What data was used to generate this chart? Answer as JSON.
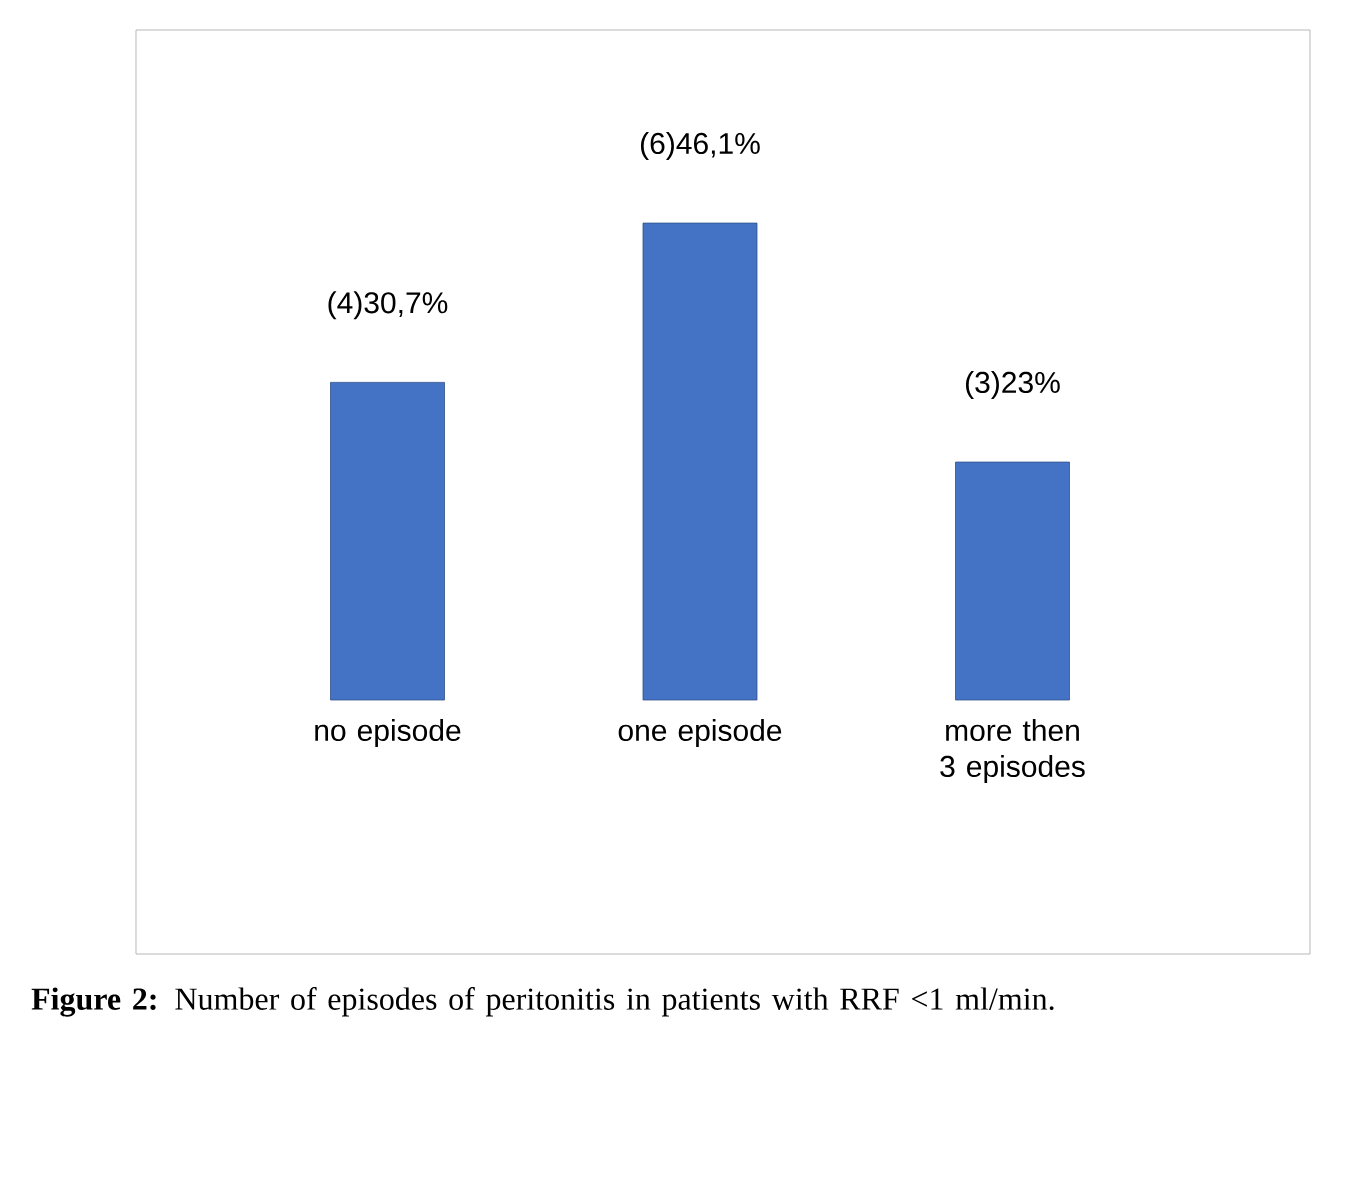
{
  "chart_data": {
    "type": "bar",
    "categories": [
      "no episode",
      "one episode",
      "more then 3 episodes"
    ],
    "values": [
      30.7,
      46.1,
      23
    ],
    "value_labels": [
      "(4)30,7%",
      "(6)46,1%",
      "(3)23%"
    ],
    "color": "#4472c4",
    "annotations": [
      "**Figure 2:** Number of episodes of peritonitis in patients with RRF <1 ml/min."
    ]
  }
}
